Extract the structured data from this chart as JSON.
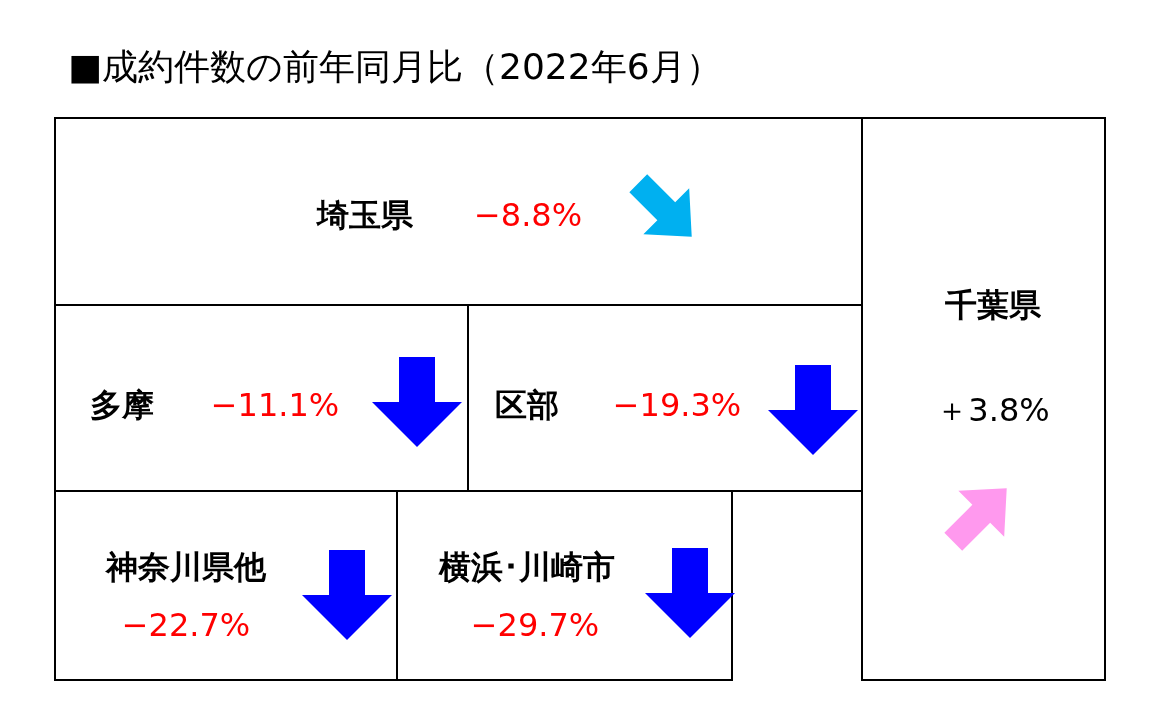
{
  "chart_data": {
    "type": "other",
    "title": "■成約件数の前年同月比（2022年6月）",
    "categories": [
      "埼玉県",
      "多摩",
      "区部",
      "神奈川県他",
      "横浜･川崎市",
      "千葉県"
    ],
    "values": [
      -8.8,
      -11.1,
      -19.3,
      -22.7,
      -29.7,
      3.8
    ],
    "value_labels": [
      "−8.8%",
      "−11.1%",
      "−19.3%",
      "−22.7%",
      "−29.7%",
      "＋3.8%"
    ],
    "colors": [
      "#00b0f0",
      "#0000ff",
      "#0000ff",
      "#0000ff",
      "#0000ff",
      "#ff99ee"
    ]
  }
}
